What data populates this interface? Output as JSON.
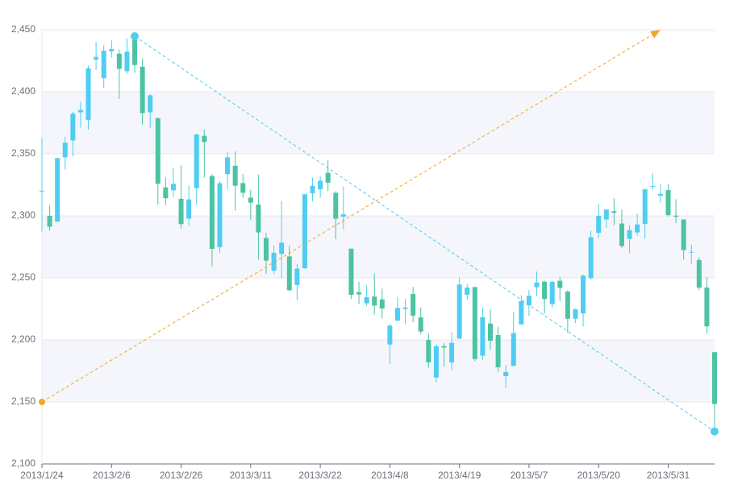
{
  "chart_data": {
    "type": "candlestick",
    "categories": [
      "2013/1/24",
      null,
      null,
      null,
      null,
      null,
      null,
      null,
      null,
      "2013/2/6",
      null,
      null,
      null,
      null,
      null,
      null,
      null,
      null,
      "2013/2/26",
      null,
      null,
      null,
      null,
      null,
      null,
      null,
      null,
      "2013/3/11",
      null,
      null,
      null,
      null,
      null,
      null,
      null,
      null,
      "2013/3/22",
      null,
      null,
      null,
      null,
      null,
      null,
      null,
      null,
      "2013/4/8",
      null,
      null,
      null,
      null,
      null,
      null,
      null,
      null,
      "2013/4/19",
      null,
      null,
      null,
      null,
      null,
      null,
      null,
      null,
      "2013/5/7",
      null,
      null,
      null,
      null,
      null,
      null,
      null,
      null,
      "2013/5/20",
      null,
      null,
      null,
      null,
      null,
      null,
      null,
      null,
      "2013/5/31",
      null,
      null,
      null,
      null,
      null,
      null
    ],
    "open": [
      2320.26,
      2300,
      2295.35,
      2347.22,
      2360.75,
      2383.43,
      2377.41,
      2425.92,
      2411,
      2432.68,
      2430.69,
      2416.62,
      2441.91,
      2420.26,
      2383.49,
      2378.82,
      2322.94,
      2320.62,
      2313.74,
      2297.77,
      2322.32,
      2364.54,
      2332.08,
      2274.81,
      2333.61,
      2340.44,
      2326.42,
      2314.68,
      2309.16,
      2282.17,
      2255.77,
      2269.31,
      2267.29,
      2244.26,
      2257.74,
      2318.21,
      2321.4,
      2334.74,
      2318.58,
      2299.38,
      2273.55,
      2238.49,
      2229.46,
      2234.9,
      2232.69,
      2196.24,
      2215.47,
      2224.93,
      2236.98,
      2218.09,
      2199.91,
      2169.63,
      2195.03,
      2181.82,
      2201.12,
      2236.4,
      2242.62,
      2187.35,
      2213.19,
      2203.89,
      2170.78,
      2179.05,
      2212.5,
      2227.86,
      2242.39,
      2246.96,
      2228.82,
      2247.68,
      2238.9,
      2217.09,
      2221.34,
      2249.81,
      2286.33,
      2297.11,
      2303.75,
      2293.81,
      2281.45,
      2286.66,
      2293.4,
      2323.54,
      2316.25,
      2320.74,
      2300.21,
      2297.1,
      2270.71,
      2264.43,
      2242.26,
      2190.1
    ],
    "close": [
      2320.26,
      2291.3,
      2346.5,
      2358.98,
      2382.48,
      2385.42,
      2419.02,
      2428.15,
      2433.13,
      2434.48,
      2418.53,
      2432.4,
      2421.56,
      2382.91,
      2397.18,
      2325.95,
      2314.16,
      2325.82,
      2293.34,
      2313.22,
      2365.59,
      2359.51,
      2273.4,
      2326.31,
      2347.18,
      2324.29,
      2318.61,
      2310.59,
      2286.6,
      2263.97,
      2270.28,
      2278.4,
      2240.02,
      2257.43,
      2317.37,
      2324.24,
      2328.28,
      2326.72,
      2297.67,
      2301.26,
      2236.3,
      2236.62,
      2234.4,
      2227.74,
      2225.29,
      2211.59,
      2225.77,
      2226.13,
      2219.55,
      2206.78,
      2181.94,
      2194.85,
      2193.8,
      2197.6,
      2244.64,
      2242.17,
      2184.54,
      2218.32,
      2199.31,
      2177.91,
      2174.12,
      2205.5,
      2231.17,
      2235.57,
      2246.3,
      2232.97,
      2246.83,
      2241.92,
      2217.01,
      2224.8,
      2251.81,
      2282.87,
      2299.99,
      2305.11,
      2302.4,
      2275.67,
      2288.53,
      2293.08,
      2321.32,
      2324.02,
      2317.75,
      2300.59,
      2299.25,
      2272.42,
      2270.93,
      2242.11,
      2210.9,
      2148.35
    ],
    "low": [
      2287.3,
      2288.26,
      2295.35,
      2337.35,
      2347.89,
      2371.23,
      2369.57,
      2417.58,
      2403.3,
      2427.7,
      2394.22,
      2414.4,
      2415.43,
      2373.53,
      2370.61,
      2309.17,
      2308.76,
      2315.01,
      2289.89,
      2292.03,
      2308.92,
      2330.86,
      2259.25,
      2270.1,
      2321.6,
      2304.27,
      2314.59,
      2296.58,
      2264.83,
      2253.25,
      2253.31,
      2250,
      2239.21,
      2232.02,
      2257.42,
      2311.6,
      2314.97,
      2319.91,
      2281.12,
      2289,
      2232.91,
      2228.81,
      2227.31,
      2220.44,
      2217.25,
      2180.67,
      2215.47,
      2212.56,
      2214.39,
      2204.44,
      2177.39,
      2165.78,
      2178.47,
      2175.44,
      2200.58,
      2232.26,
      2182.81,
      2184.11,
      2191.85,
      2173.86,
      2161.14,
      2179.05,
      2212.5,
      2219.44,
      2235.42,
      2221.38,
      2225.81,
      2231.36,
      2205.87,
      2213.58,
      2210.77,
      2248.41,
      2281.9,
      2290.12,
      2292.43,
      2274.1,
      2270.25,
      2283.94,
      2281.47,
      2321.17,
      2310.49,
      2299.37,
      2294.11,
      2264.76,
      2260.87,
      2240.07,
      2205.07,
      2126.22
    ],
    "high": [
      2362.94,
      2308.38,
      2346.92,
      2363.8,
      2383.76,
      2391.82,
      2421.15,
      2440.38,
      2437.42,
      2441.73,
      2433.89,
      2443.03,
      2444.8,
      2427.07,
      2397.94,
      2378.82,
      2330.88,
      2338.78,
      2340.71,
      2324.63,
      2366.16,
      2369.65,
      2333.54,
      2328.14,
      2351.44,
      2352.02,
      2333.67,
      2320.96,
      2333.29,
      2286.33,
      2276.22,
      2312.08,
      2276.05,
      2261.31,
      2317.86,
      2330.81,
      2332,
      2344.89,
      2319.99,
      2323.48,
      2273.55,
      2246.87,
      2243.95,
      2253.42,
      2241.34,
      2212.59,
      2234.73,
      2233.04,
      2242.72,
      2226.26,
      2204.99,
      2196.43,
      2197.51,
      2206.03,
      2250.11,
      2245.12,
      2242.62,
      2226.12,
      2224.63,
      2210.58,
      2179.65,
      2222.81,
      2236.07,
      2240.26,
      2255.21,
      2247.86,
      2247.67,
      2250.85,
      2239.93,
      2225.19,
      2252.87,
      2288.09,
      2309.39,
      2305.3,
      2314.18,
      2304.95,
      2292.59,
      2301.7,
      2322.1,
      2334.33,
      2325.72,
      2325.53,
      2313.43,
      2297.1,
      2276.86,
      2266.69,
      2250.63,
      2190.1
    ],
    "up_color": "#4fcdf2",
    "down_color": "#4cc3a3",
    "ylim": [
      2100,
      2450
    ],
    "yticks": [
      {
        "value": 2100,
        "label": "2,100"
      },
      {
        "value": 2150,
        "label": "2,150"
      },
      {
        "value": 2200,
        "label": "2,200"
      },
      {
        "value": 2250,
        "label": "2,250"
      },
      {
        "value": 2300,
        "label": "2,300"
      },
      {
        "value": 2350,
        "label": "2,350"
      },
      {
        "value": 2400,
        "label": "2,400"
      },
      {
        "value": 2450,
        "label": "2,450"
      }
    ],
    "grid": true,
    "split_area": true,
    "lines": [
      {
        "from": {
          "index": 12,
          "y": 2444.8
        },
        "to": {
          "index": 87,
          "y": 2126.22
        },
        "color": "#4fcdf2",
        "end_symbol": "circle"
      },
      {
        "from": {
          "index": 0,
          "y": 2150
        },
        "to": {
          "index": 80,
          "y": 2450
        },
        "color": "#f5a623",
        "end_symbol": "arrow"
      }
    ]
  }
}
